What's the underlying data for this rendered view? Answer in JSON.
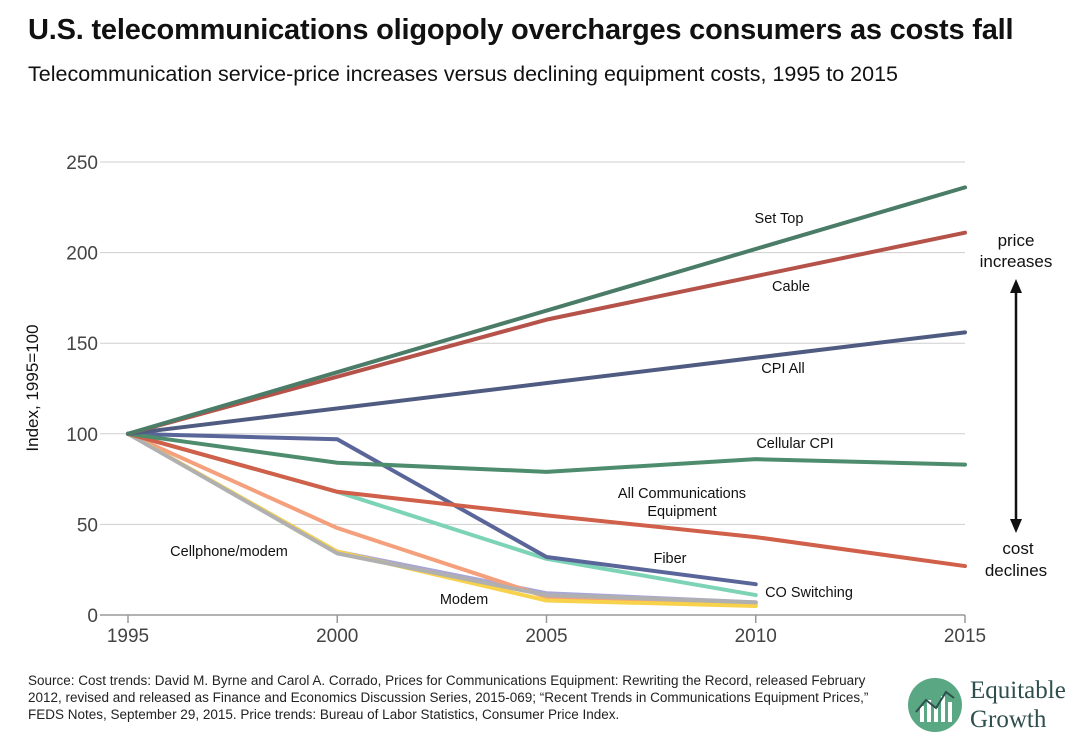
{
  "header": {
    "title": "U.S. telecommunications oligopoly overcharges consumers as costs fall",
    "subtitle": "Telecommunication service-price increases versus declining equipment costs, 1995 to 2015"
  },
  "chart_data": {
    "type": "line",
    "x": [
      1995,
      2000,
      2005,
      2010,
      2015
    ],
    "xlim": [
      1995,
      2015
    ],
    "ylim": [
      0,
      250
    ],
    "yticks": [
      0,
      50,
      100,
      150,
      200,
      250
    ],
    "ylabel": "Index, 1995=100",
    "xlabel": "",
    "grid": true,
    "series": [
      {
        "name": "Set Top",
        "x": [
          1995,
          2015
        ],
        "values": [
          100,
          236
        ],
        "color": "#4a7c68"
      },
      {
        "name": "Cable",
        "x": [
          1995,
          2005,
          2015
        ],
        "values": [
          100,
          163,
          211
        ],
        "color": "#b5534b"
      },
      {
        "name": "CPI All",
        "x": [
          1995,
          2015
        ],
        "values": [
          100,
          156
        ],
        "color": "#4f5b80"
      },
      {
        "name": "Cellular CPI",
        "x": [
          1995,
          2000,
          2005,
          2010,
          2015
        ],
        "values": [
          100,
          84,
          79,
          86,
          83
        ],
        "color": "#4e8c6e"
      },
      {
        "name": "All Communications Equipment",
        "x": [
          1995,
          2000,
          2005,
          2010,
          2015
        ],
        "values": [
          100,
          68,
          55,
          43,
          27
        ],
        "color": "#d0604a"
      },
      {
        "name": "Fiber",
        "x": [
          1995,
          2000,
          2005,
          2010
        ],
        "values": [
          100,
          97,
          32,
          17
        ],
        "color": "#5a6699"
      },
      {
        "name": "CO Switching",
        "x": [
          1995,
          2000,
          2005,
          2010
        ],
        "values": [
          100,
          68,
          31,
          11
        ],
        "color": "#7dd3b5"
      },
      {
        "name": "Cellphone/modem",
        "x": [
          1995,
          2000,
          2005,
          2010
        ],
        "values": [
          100,
          34,
          11,
          7
        ],
        "color": "#b0b0b0"
      },
      {
        "name": "Modem",
        "x": [
          1995,
          2000,
          2005,
          2010
        ],
        "values": [
          100,
          35,
          8,
          5
        ],
        "color": "#f7d24a"
      },
      {
        "name": "",
        "x": [
          1995,
          2000,
          2005,
          2010
        ],
        "values": [
          100,
          48,
          10,
          6
        ],
        "color": "#f4a07c"
      },
      {
        "name": "",
        "x": [
          1995,
          2000,
          2005,
          2010
        ],
        "values": [
          100,
          35,
          12,
          7
        ],
        "color": "#a9a6d6"
      }
    ],
    "annotations": {
      "top": [
        "price",
        "increases"
      ],
      "bottom": [
        "cost",
        "declines"
      ]
    }
  },
  "footer": {
    "source": "Source: Cost trends: David M. Byrne and Carol A. Corrado, Prices for Communications Equipment: Rewriting the Record, released February 2012, revised and released as Finance and Economics Discussion Series, 2015-069; “Recent Trends in Communications Equipment Prices,” FEDS Notes, September 29, 2015. Price trends: Bureau of Labor Statistics, Consumer Price Index.",
    "logo_line1": "Equitable",
    "logo_line2": "Growth"
  }
}
